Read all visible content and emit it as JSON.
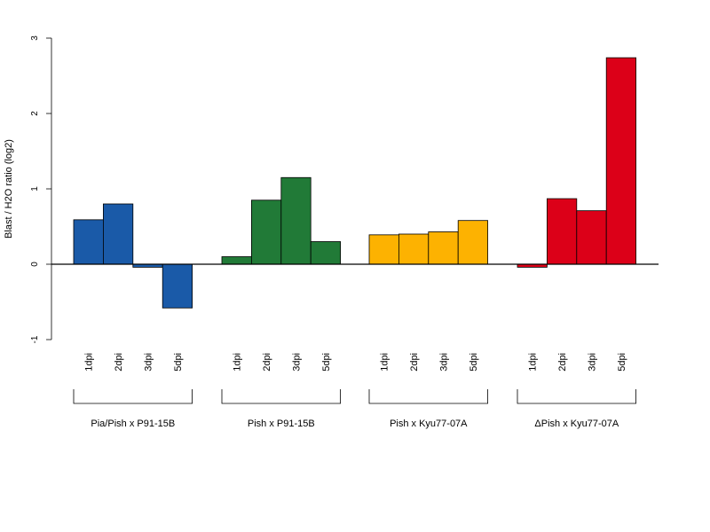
{
  "chart_data": {
    "type": "bar",
    "title": "",
    "xlabel": "",
    "ylabel": "Blast / H2O ratio (log2)",
    "ylim": [
      -1,
      3
    ],
    "yticks": [
      -1,
      0,
      1,
      2,
      3
    ],
    "grid": false,
    "legend": "none",
    "categories": [
      "1dpi",
      "2dpi",
      "3dpi",
      "5dpi"
    ],
    "groups": [
      {
        "name": "Pia/Pish x P91-15B",
        "color": "#1a5aa8",
        "values": [
          0.59,
          0.8,
          -0.04,
          -0.58
        ]
      },
      {
        "name": "Pish x P91-15B",
        "color": "#217a37",
        "values": [
          0.1,
          0.85,
          1.15,
          0.3
        ]
      },
      {
        "name": "Pish x Kyu77-07A",
        "color": "#fdb201",
        "values": [
          0.39,
          0.4,
          0.43,
          0.58
        ]
      },
      {
        "name": "ΔPish x Kyu77-07A",
        "color": "#dc0018",
        "values": [
          -0.04,
          0.87,
          0.71,
          2.74
        ]
      }
    ]
  }
}
